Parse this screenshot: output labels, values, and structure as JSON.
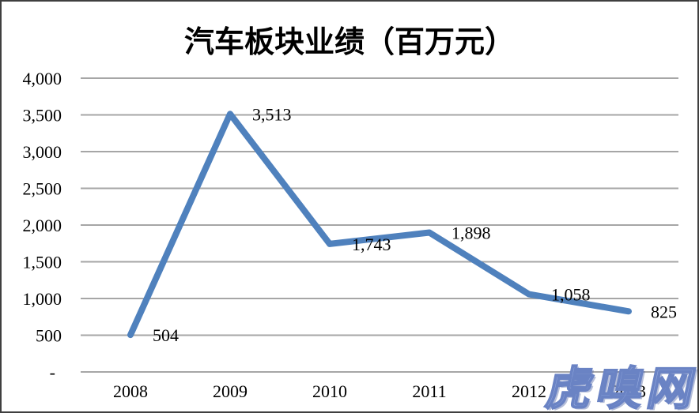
{
  "watermark": {
    "text": "虎嗅网",
    "fill": "#97ace0",
    "outline": "#6a83c4"
  },
  "chart_data": {
    "type": "line",
    "title": "汽车板块业绩（百万元）",
    "categories": [
      "2008",
      "2009",
      "2010",
      "2011",
      "2012",
      "2013"
    ],
    "series": [
      {
        "name": "汽车板块业绩",
        "values": [
          504,
          3513,
          1743,
          1898,
          1058,
          825
        ]
      }
    ],
    "data_labels": [
      "504",
      "3,513",
      "1,743",
      "1,898",
      "1,058",
      "825"
    ],
    "y_ticks": [
      {
        "value": 0,
        "label": "-"
      },
      {
        "value": 500,
        "label": "500"
      },
      {
        "value": 1000,
        "label": "1,000"
      },
      {
        "value": 1500,
        "label": "1,500"
      },
      {
        "value": 2000,
        "label": "2,000"
      },
      {
        "value": 2500,
        "label": "2,500"
      },
      {
        "value": 3000,
        "label": "3,000"
      },
      {
        "value": 3500,
        "label": "3,500"
      },
      {
        "value": 4000,
        "label": "4,000"
      }
    ],
    "ylim": [
      0,
      4000
    ],
    "grid": true,
    "legend": "none",
    "line_color": "#4F81BD",
    "gridline_color": "#A6A6A6",
    "text_color": "#000000"
  }
}
